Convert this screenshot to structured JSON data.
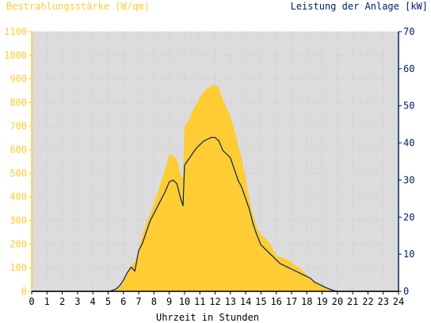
{
  "chart_data": {
    "type": "area",
    "title": "",
    "xlabel": "Uhrzeit in Stunden",
    "ylabel_left": "Bestrahlungsstärke [W/qm]",
    "ylabel_right": "Leistung der Anlage [kW]",
    "xlim": [
      0,
      24
    ],
    "ylim_left": [
      0,
      1100
    ],
    "ylim_right": [
      0,
      70
    ],
    "x_ticks": [
      "0",
      "1",
      "2",
      "3",
      "4",
      "5",
      "6",
      "7",
      "8",
      "9",
      "10",
      "11",
      "12",
      "13",
      "14",
      "15",
      "16",
      "17",
      "18",
      "19",
      "20",
      "21",
      "22",
      "23",
      "24"
    ],
    "y_ticks_left": [
      "0",
      "100",
      "200",
      "300",
      "400",
      "500",
      "600",
      "700",
      "800",
      "900",
      "1000",
      "1100"
    ],
    "y_ticks_right": [
      "0",
      "10",
      "20",
      "30",
      "40",
      "50",
      "60",
      "70"
    ],
    "grid": true,
    "colors": {
      "irradiance_fill": "#ffcc33",
      "power_line": "#002266",
      "plot_bg": "#dcdcdc",
      "left_axis": "#ffcc33",
      "right_axis": "#002266"
    },
    "series": [
      {
        "axis": "left",
        "style": "area",
        "x": [
          0,
          5,
          5.25,
          5.5,
          5.75,
          6,
          6.25,
          6.5,
          6.75,
          7,
          7.25,
          7.5,
          7.75,
          8,
          8.25,
          8.5,
          8.75,
          9,
          9.25,
          9.5,
          9.75,
          9.9,
          10,
          10.25,
          10.5,
          10.75,
          11,
          11.25,
          11.5,
          11.75,
          12,
          12.25,
          12.5,
          12.75,
          13,
          13.25,
          13.5,
          13.75,
          14,
          14.25,
          14.5,
          14.75,
          15,
          15.25,
          15.5,
          15.75,
          16,
          16.25,
          16.5,
          16.75,
          17,
          17.25,
          17.5,
          17.75,
          18,
          18.25,
          18.5,
          18.75,
          19,
          19.25,
          19.5,
          19.75,
          20,
          24
        ],
        "y": [
          0,
          0,
          3,
          10,
          25,
          45,
          80,
          110,
          125,
          180,
          240,
          290,
          330,
          370,
          420,
          470,
          520,
          580,
          575,
          560,
          490,
          480,
          700,
          720,
          760,
          790,
          820,
          845,
          860,
          870,
          875,
          860,
          810,
          780,
          740,
          690,
          620,
          560,
          480,
          390,
          320,
          270,
          240,
          225,
          210,
          185,
          150,
          145,
          140,
          135,
          120,
          110,
          100,
          85,
          70,
          55,
          45,
          35,
          25,
          18,
          10,
          4,
          0,
          0
        ]
      },
      {
        "axis": "right",
        "style": "line",
        "x": [
          0,
          5,
          5.25,
          5.5,
          5.75,
          6,
          6.25,
          6.5,
          6.75,
          7,
          7.25,
          7.5,
          7.75,
          8,
          8.25,
          8.5,
          8.75,
          9,
          9.25,
          9.5,
          9.75,
          9.9,
          10,
          10.25,
          10.5,
          10.75,
          11,
          11.25,
          11.5,
          11.75,
          12,
          12.25,
          12.5,
          12.75,
          13,
          13.25,
          13.5,
          13.75,
          14,
          14.25,
          14.5,
          14.75,
          15,
          15.25,
          15.5,
          15.75,
          16,
          16.25,
          16.5,
          16.75,
          17,
          17.25,
          17.5,
          17.75,
          18,
          18.25,
          18.5,
          18.75,
          19,
          19.25,
          19.5,
          19.75,
          20,
          24
        ],
        "y": [
          0,
          0,
          0.2,
          0.6,
          1.5,
          3,
          5,
          6.5,
          5.5,
          11,
          13,
          16,
          19,
          21,
          23,
          25,
          27,
          29.5,
          30,
          29,
          25,
          23,
          34,
          35.5,
          37,
          38.5,
          39.5,
          40.5,
          41,
          41.5,
          41.5,
          40.5,
          38,
          37,
          36,
          33,
          30,
          28,
          25,
          22,
          18,
          15,
          12.5,
          11.5,
          10.5,
          9.5,
          8.5,
          7.5,
          7,
          6.5,
          6,
          5.5,
          5,
          4.5,
          4,
          3.5,
          2.5,
          2,
          1.5,
          1,
          0.6,
          0.2,
          0,
          0
        ]
      }
    ]
  }
}
